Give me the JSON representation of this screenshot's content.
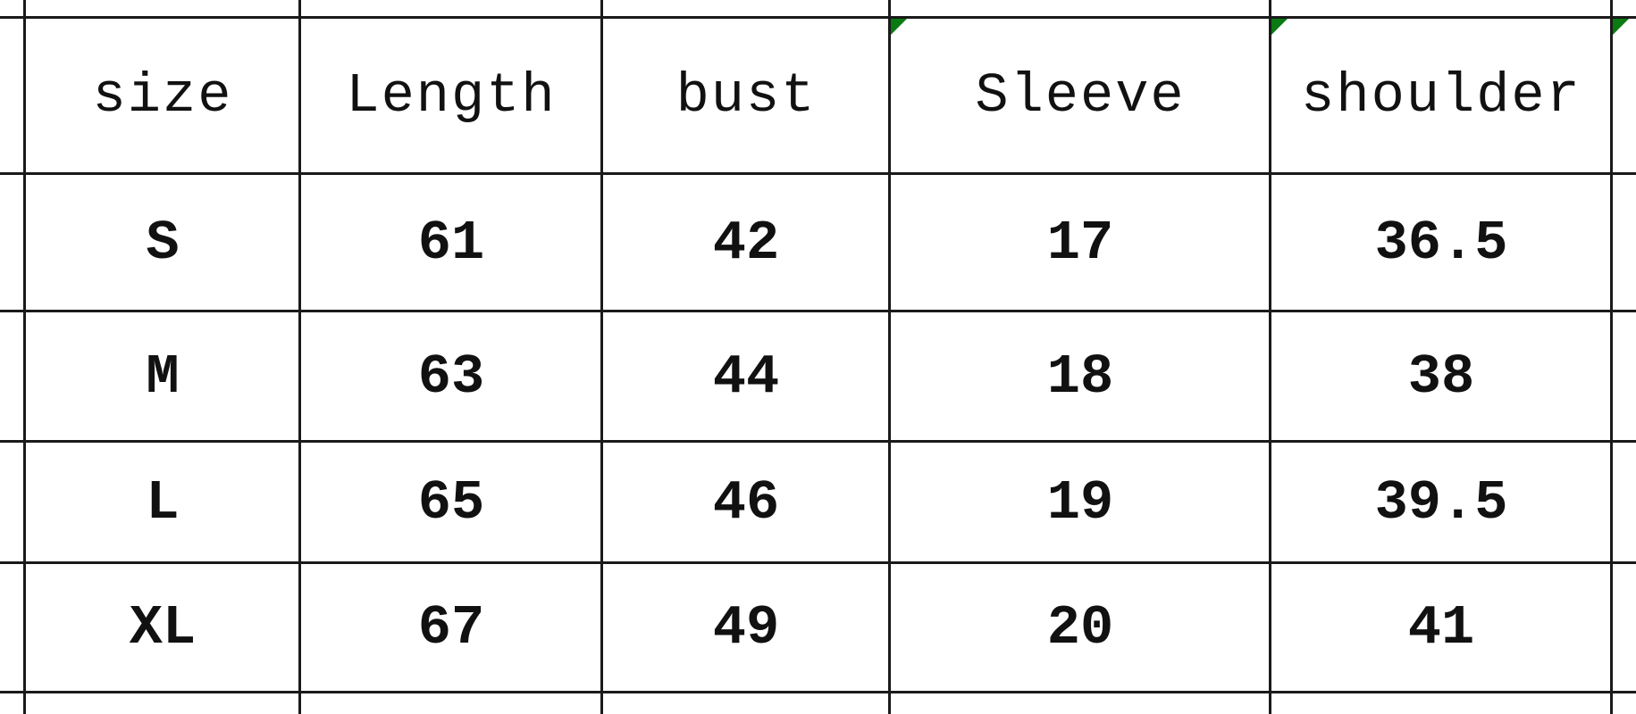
{
  "table": {
    "headers": [
      "size",
      "Length",
      "bust",
      "Sleeve",
      "shoulder"
    ],
    "rows": [
      [
        "S",
        "61",
        "42",
        "17",
        "36.5"
      ],
      [
        "M",
        "63",
        "44",
        "18",
        "38"
      ],
      [
        "L",
        "65",
        "46",
        "19",
        "39.5"
      ],
      [
        "XL",
        "67",
        "49",
        "20",
        "41"
      ]
    ]
  },
  "colors": {
    "grid": "#1a1a1a",
    "comment_marker": "#0a7a12"
  }
}
